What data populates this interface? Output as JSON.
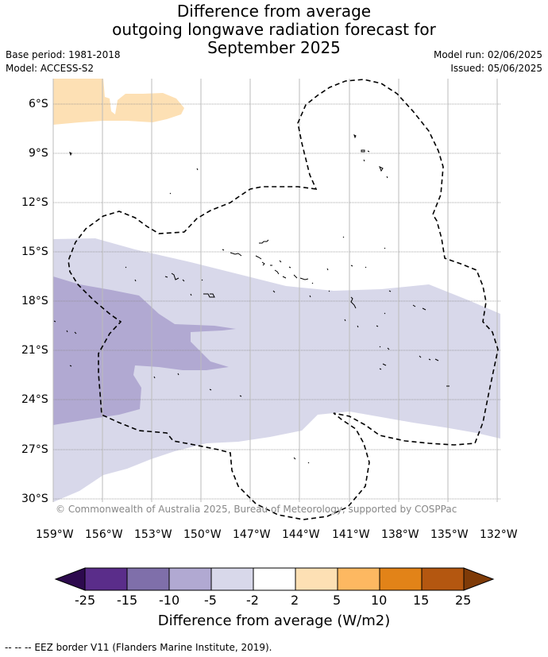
{
  "title": {
    "line1": "Difference from average",
    "line2": "outgoing longwave radiation forecast for",
    "line3": "September 2025"
  },
  "meta": {
    "base_period": "Base period: 1981-2018",
    "model": "Model: ACCESS-S2",
    "model_run": "Model run: 02/06/2025",
    "issued": "Issued: 05/06/2025"
  },
  "map": {
    "lat_labels": [
      "6°S",
      "9°S",
      "12°S",
      "15°S",
      "18°S",
      "21°S",
      "24°S",
      "27°S",
      "30°S"
    ],
    "lon_labels": [
      "159°W",
      "156°W",
      "153°W",
      "150°W",
      "147°W",
      "144°W",
      "141°W",
      "138°W",
      "135°W",
      "132°W"
    ],
    "copyright": "© Commonwealth of Australia 2025, Bureau of Meteorology, supported by COSPPac"
  },
  "colorbar": {
    "title": "Difference from average (W/m2)",
    "ticks": [
      "-25",
      "-15",
      "-10",
      "-5",
      "-2",
      "2",
      "5",
      "10",
      "15",
      "25"
    ],
    "colors": [
      "#2d0a4e",
      "#5a2d8a",
      "#7f6faa",
      "#b1a9d2",
      "#d8d8ea",
      "#ffffff",
      "#fde0b4",
      "#fdb861",
      "#e28318",
      "#b45710",
      "#7f3b08"
    ]
  },
  "footer": "--  --  -- EEZ border V11 (Flanders Marine Institute, 2019)."
}
